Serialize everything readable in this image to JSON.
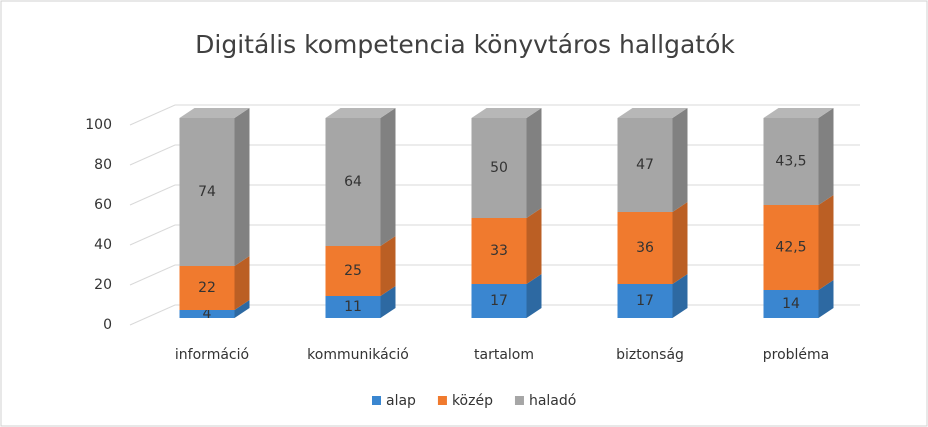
{
  "chart_data": {
    "type": "bar3d_stacked",
    "title": "Digitális kompetencia könyvtáros hallgatók",
    "categories": [
      "információ",
      "kommunikáció",
      "tartalom",
      "biztonság",
      "probléma"
    ],
    "series": [
      {
        "name": "alap",
        "color": "#3a86d0",
        "values": [
          4,
          11,
          17,
          17,
          14
        ]
      },
      {
        "name": "közép",
        "color": "#f07a2e",
        "values": [
          22,
          25,
          33,
          36,
          42.5
        ],
        "value_labels": [
          "22",
          "25",
          "33",
          "36",
          "42,5"
        ]
      },
      {
        "name": "haladó",
        "color": "#a6a6a6",
        "values": [
          74,
          64,
          50,
          47,
          43.5
        ],
        "value_labels": [
          "74",
          "64",
          "50",
          "47",
          "43,5"
        ]
      }
    ],
    "ylim": [
      0,
      100
    ],
    "yticks": [
      0,
      20,
      40,
      60,
      80,
      100
    ],
    "grid": true,
    "legend": "bottom"
  }
}
